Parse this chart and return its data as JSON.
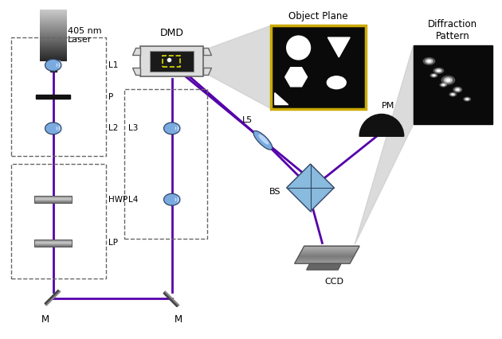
{
  "bg_color": "#ffffff",
  "purple": "#5500AA",
  "purple_dark": "#3D007A",
  "blue_lens_light": "#AACCEE",
  "blue_lens_dark": "#6699BB",
  "blue_bs": "#88BBDD",
  "labels": {
    "laser": "405 nm\nLaser",
    "dmd": "DMD",
    "object_plane": "Object Plane",
    "l1": "L1",
    "l2": "L2",
    "l3": "L3",
    "l4": "L4",
    "l5": "L5",
    "p": "P",
    "hwp": "HWP",
    "lp": "LP",
    "m": "M",
    "bs": "BS",
    "pm": "PM",
    "ccd": "CCD",
    "diffraction": "Diffraction\nPattern"
  },
  "beam_lw": 2.0
}
